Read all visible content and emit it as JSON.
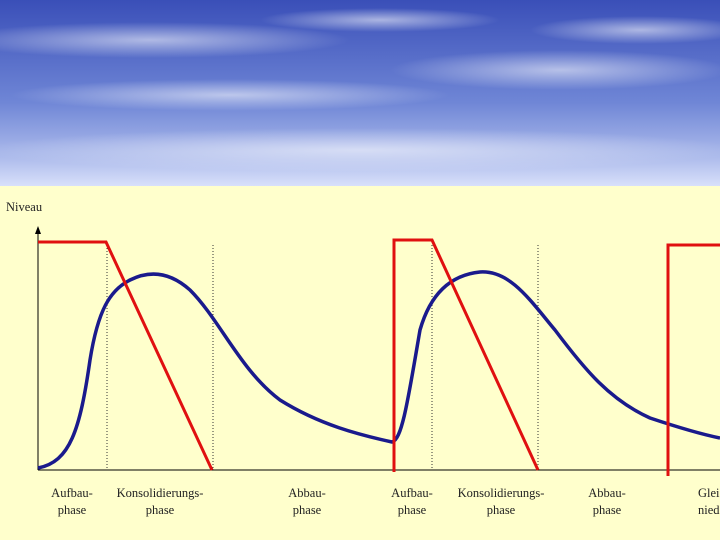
{
  "axis_label": "Niveau",
  "phases": [
    {
      "line1": "Aufbau-",
      "line2": "phase"
    },
    {
      "line1": "Konsolidierungs-",
      "line2": "phase"
    },
    {
      "line1": "Abbau-",
      "line2": "phase"
    },
    {
      "line1": "Aufbau-",
      "line2": "phase"
    },
    {
      "line1": "Konsolidierungs-",
      "line2": "phase"
    },
    {
      "line1": "Abbau-",
      "line2": "phase"
    },
    {
      "line1": "Glei",
      "line2": "nied"
    }
  ]
}
